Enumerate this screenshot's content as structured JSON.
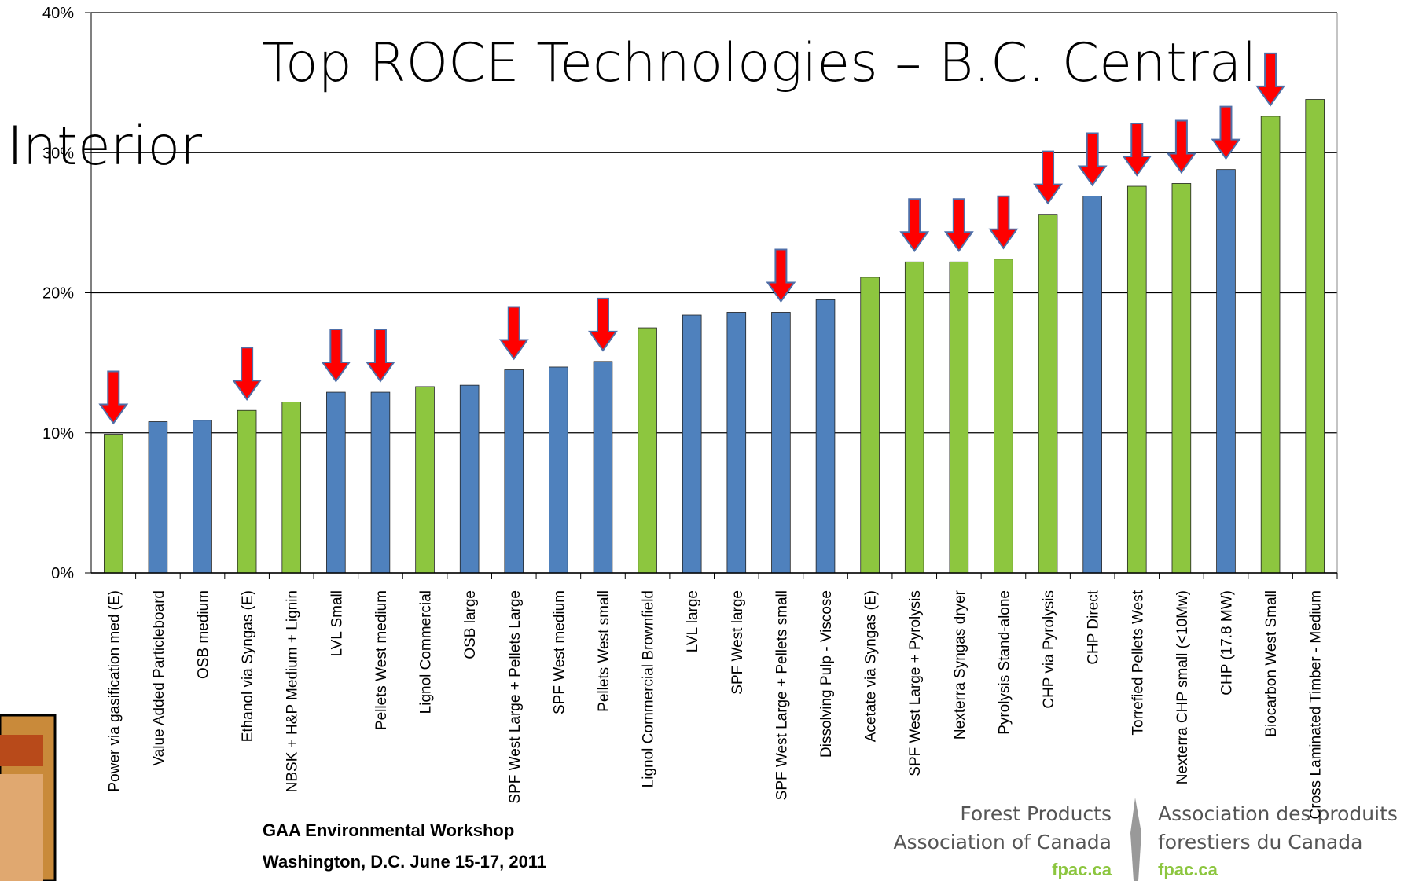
{
  "chart_data": {
    "type": "bar",
    "title": [
      "Top ROCE Technologies – B.C. Central",
      "Interior"
    ],
    "categories": [
      "Power via gasification med (E)",
      "Value Added Particleboard",
      "OSB medium",
      "Ethanol via Syngas (E)",
      "NBSK + H&P Medium + Lignin",
      "LVL  Small",
      "Pellets West medium",
      "Lignol Commercial",
      "OSB large",
      "SPF West Large + Pellets Large",
      "SPF West medium",
      "Pellets West small",
      "Lignol Commercial Brownfield",
      "LVL large",
      "SPF West large",
      "SPF West Large + Pellets small",
      "Dissolving Pulp - Viscose",
      "Acetate via Syngas (E)",
      "SPF West Large + Pyrolysis",
      "Nexterra Syngas dryer",
      "Pyrolysis Stand-alone",
      "CHP via Pyrolysis",
      "CHP Direct",
      "Torrefied Pellets West",
      "Nexterra CHP small (<10Mw)",
      "CHP (17.8 MW)",
      "Biocarbon West Small",
      "Cross Laminated Timber - Medium"
    ],
    "values": [
      9.9,
      10.8,
      10.9,
      11.6,
      12.2,
      12.9,
      12.9,
      13.3,
      13.4,
      14.5,
      14.7,
      15.1,
      17.5,
      18.4,
      18.6,
      18.6,
      19.5,
      21.1,
      22.2,
      22.2,
      22.4,
      25.6,
      26.9,
      27.6,
      27.8,
      28.8,
      32.6,
      33.8
    ],
    "colors": [
      "#8dc63f",
      "#4f81bd",
      "#4f81bd",
      "#8dc63f",
      "#8dc63f",
      "#4f81bd",
      "#4f81bd",
      "#8dc63f",
      "#4f81bd",
      "#4f81bd",
      "#4f81bd",
      "#4f81bd",
      "#8dc63f",
      "#4f81bd",
      "#4f81bd",
      "#4f81bd",
      "#4f81bd",
      "#8dc63f",
      "#8dc63f",
      "#8dc63f",
      "#8dc63f",
      "#8dc63f",
      "#4f81bd",
      "#8dc63f",
      "#8dc63f",
      "#4f81bd",
      "#8dc63f",
      "#8dc63f"
    ],
    "arrows": [
      true,
      false,
      false,
      true,
      false,
      true,
      true,
      false,
      false,
      true,
      false,
      true,
      false,
      false,
      false,
      true,
      false,
      false,
      true,
      true,
      true,
      true,
      true,
      true,
      true,
      true,
      true,
      false
    ],
    "arrow_color": "#ff0000",
    "ylim": [
      0,
      40
    ],
    "yticks": [
      {
        "value": 0,
        "label": "0%"
      },
      {
        "value": 10,
        "label": "10%"
      },
      {
        "value": 20,
        "label": "20%"
      },
      {
        "value": 30,
        "label": "30%"
      },
      {
        "value": 40,
        "label": "40%"
      }
    ],
    "grid": true
  },
  "footer": {
    "event": "GAA Environmental Workshop",
    "place": "Washington, D.C. June 15-17, 2011",
    "logo_en": [
      "Forest Products",
      "Association of Canada"
    ],
    "logo_fr": [
      "Association des produits",
      "forestiers du Canada"
    ],
    "url_en": "fpac.ca",
    "url_fr": "fpac.ca"
  }
}
